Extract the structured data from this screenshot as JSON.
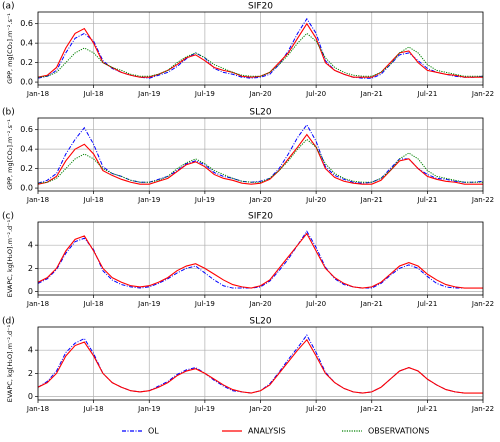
{
  "chart_data": [
    {
      "type": "line",
      "panel_label": "(a)",
      "title": "SIF20",
      "ylabel": "GPP, mg[CO₂].m⁻².s⁻¹",
      "x": [
        0,
        1,
        2,
        3,
        4,
        5,
        6,
        7,
        8,
        9,
        10,
        11,
        12,
        13,
        14,
        15,
        16,
        17,
        18,
        19,
        20,
        21,
        22,
        23,
        24,
        25,
        26,
        27,
        28,
        29,
        30,
        31,
        32,
        33,
        34,
        35,
        36,
        37,
        38,
        39,
        40,
        41,
        42,
        43,
        44,
        45,
        46,
        47,
        48
      ],
      "xlim": [
        0,
        48
      ],
      "xticks": [
        {
          "value": 0,
          "label": "Jan-18"
        },
        {
          "value": 6,
          "label": "Jul-18"
        },
        {
          "value": 12,
          "label": "Jan-19"
        },
        {
          "value": 18,
          "label": "Jul-19"
        },
        {
          "value": 24,
          "label": "Jan-20"
        },
        {
          "value": 30,
          "label": "Jul-20"
        },
        {
          "value": 36,
          "label": "Jan-21"
        },
        {
          "value": 42,
          "label": "Jul-21"
        },
        {
          "value": 48,
          "label": "Jan-22"
        }
      ],
      "ylim": [
        -0.03,
        0.72
      ],
      "yticks": [
        {
          "value": 0,
          "label": "0.0"
        },
        {
          "value": 0.2,
          "label": "0.2"
        },
        {
          "value": 0.4,
          "label": "0.4"
        },
        {
          "value": 0.6,
          "label": "0.6"
        }
      ],
      "grid": true,
      "series": [
        {
          "name": "OL",
          "color": "#0000ff",
          "dash": "dashdot",
          "values": [
            0.04,
            0.06,
            0.12,
            0.3,
            0.45,
            0.5,
            0.42,
            0.22,
            0.14,
            0.1,
            0.07,
            0.05,
            0.04,
            0.07,
            0.1,
            0.16,
            0.24,
            0.3,
            0.25,
            0.14,
            0.1,
            0.08,
            0.05,
            0.04,
            0.05,
            0.08,
            0.18,
            0.32,
            0.5,
            0.65,
            0.5,
            0.22,
            0.12,
            0.08,
            0.05,
            0.04,
            0.04,
            0.08,
            0.18,
            0.28,
            0.3,
            0.22,
            0.14,
            0.1,
            0.08,
            0.06,
            0.05,
            0.05,
            0.06
          ]
        },
        {
          "name": "ANALYSIS",
          "color": "#ff0000",
          "dash": "solid",
          "values": [
            0.05,
            0.07,
            0.15,
            0.35,
            0.5,
            0.55,
            0.4,
            0.2,
            0.15,
            0.1,
            0.07,
            0.05,
            0.05,
            0.08,
            0.12,
            0.18,
            0.25,
            0.28,
            0.22,
            0.15,
            0.12,
            0.1,
            0.06,
            0.05,
            0.06,
            0.1,
            0.2,
            0.3,
            0.45,
            0.6,
            0.45,
            0.2,
            0.12,
            0.08,
            0.05,
            0.05,
            0.05,
            0.1,
            0.2,
            0.3,
            0.32,
            0.2,
            0.12,
            0.1,
            0.08,
            0.07,
            0.05,
            0.05,
            0.05
          ]
        },
        {
          "name": "OBSERVATIONS",
          "color": "#008000",
          "dash": "dotted",
          "values": [
            0.05,
            0.06,
            0.1,
            0.2,
            0.3,
            0.35,
            0.3,
            0.2,
            0.15,
            0.12,
            0.08,
            0.06,
            0.06,
            0.08,
            0.12,
            0.2,
            0.26,
            0.3,
            0.25,
            0.18,
            0.14,
            0.1,
            0.07,
            0.06,
            0.06,
            0.1,
            0.18,
            0.28,
            0.4,
            0.5,
            0.42,
            0.25,
            0.15,
            0.1,
            0.07,
            0.06,
            0.06,
            0.1,
            0.18,
            0.3,
            0.36,
            0.3,
            0.18,
            0.12,
            0.1,
            0.08,
            0.06,
            0.06,
            0.06
          ]
        }
      ]
    },
    {
      "type": "line",
      "panel_label": "(b)",
      "title": "SL20",
      "ylabel": "GPP, mg[CO₂].m⁻².s⁻¹",
      "x": [
        0,
        1,
        2,
        3,
        4,
        5,
        6,
        7,
        8,
        9,
        10,
        11,
        12,
        13,
        14,
        15,
        16,
        17,
        18,
        19,
        20,
        21,
        22,
        23,
        24,
        25,
        26,
        27,
        28,
        29,
        30,
        31,
        32,
        33,
        34,
        35,
        36,
        37,
        38,
        39,
        40,
        41,
        42,
        43,
        44,
        45,
        46,
        47,
        48
      ],
      "xlim": [
        0,
        48
      ],
      "xticks": [
        {
          "value": 0,
          "label": "Jan-18"
        },
        {
          "value": 6,
          "label": "Jul-18"
        },
        {
          "value": 12,
          "label": "Jan-19"
        },
        {
          "value": 18,
          "label": "Jul-19"
        },
        {
          "value": 24,
          "label": "Jan-20"
        },
        {
          "value": 30,
          "label": "Jul-20"
        },
        {
          "value": 36,
          "label": "Jan-21"
        },
        {
          "value": 42,
          "label": "Jul-21"
        },
        {
          "value": 48,
          "label": "Jan-22"
        }
      ],
      "ylim": [
        -0.03,
        0.72
      ],
      "yticks": [
        {
          "value": 0,
          "label": "0.0"
        },
        {
          "value": 0.2,
          "label": "0.2"
        },
        {
          "value": 0.4,
          "label": "0.4"
        },
        {
          "value": 0.6,
          "label": "0.6"
        }
      ],
      "grid": true,
      "series": [
        {
          "name": "OL",
          "color": "#0000ff",
          "dash": "dashdot",
          "values": [
            0.05,
            0.08,
            0.15,
            0.35,
            0.5,
            0.62,
            0.45,
            0.22,
            0.15,
            0.12,
            0.08,
            0.06,
            0.06,
            0.09,
            0.12,
            0.18,
            0.25,
            0.28,
            0.24,
            0.16,
            0.12,
            0.1,
            0.07,
            0.06,
            0.07,
            0.1,
            0.2,
            0.35,
            0.52,
            0.65,
            0.48,
            0.22,
            0.13,
            0.09,
            0.06,
            0.05,
            0.06,
            0.1,
            0.2,
            0.3,
            0.3,
            0.2,
            0.14,
            0.1,
            0.09,
            0.07,
            0.06,
            0.06,
            0.07
          ]
        },
        {
          "name": "ANALYSIS",
          "color": "#ff0000",
          "dash": "solid",
          "values": [
            0.04,
            0.06,
            0.12,
            0.28,
            0.4,
            0.45,
            0.35,
            0.18,
            0.13,
            0.09,
            0.06,
            0.04,
            0.04,
            0.07,
            0.1,
            0.17,
            0.24,
            0.27,
            0.22,
            0.14,
            0.1,
            0.08,
            0.05,
            0.04,
            0.05,
            0.09,
            0.18,
            0.3,
            0.42,
            0.55,
            0.42,
            0.2,
            0.11,
            0.07,
            0.05,
            0.04,
            0.04,
            0.08,
            0.18,
            0.28,
            0.3,
            0.2,
            0.12,
            0.09,
            0.07,
            0.06,
            0.04,
            0.04,
            0.04
          ]
        },
        {
          "name": "OBSERVATIONS",
          "color": "#008000",
          "dash": "dotted",
          "values": [
            0.05,
            0.06,
            0.1,
            0.2,
            0.3,
            0.35,
            0.3,
            0.2,
            0.15,
            0.12,
            0.08,
            0.06,
            0.06,
            0.08,
            0.12,
            0.2,
            0.26,
            0.3,
            0.25,
            0.18,
            0.14,
            0.1,
            0.07,
            0.06,
            0.06,
            0.1,
            0.18,
            0.28,
            0.4,
            0.5,
            0.42,
            0.25,
            0.15,
            0.1,
            0.07,
            0.06,
            0.06,
            0.1,
            0.18,
            0.3,
            0.36,
            0.3,
            0.18,
            0.12,
            0.1,
            0.08,
            0.06,
            0.06,
            0.06
          ]
        }
      ]
    },
    {
      "type": "line",
      "panel_label": "(c)",
      "title": "SIF20",
      "ylabel": "EVAPC, kg[H₂O].m⁻².d⁻¹",
      "x": [
        0,
        1,
        2,
        3,
        4,
        5,
        6,
        7,
        8,
        9,
        10,
        11,
        12,
        13,
        14,
        15,
        16,
        17,
        18,
        19,
        20,
        21,
        22,
        23,
        24,
        25,
        26,
        27,
        28,
        29,
        30,
        31,
        32,
        33,
        34,
        35,
        36,
        37,
        38,
        39,
        40,
        41,
        42,
        43,
        44,
        45,
        46,
        47,
        48
      ],
      "xlim": [
        0,
        48
      ],
      "xticks": [
        {
          "value": 0,
          "label": "Jan-18"
        },
        {
          "value": 6,
          "label": "Jul-18"
        },
        {
          "value": 12,
          "label": "Jan-19"
        },
        {
          "value": 18,
          "label": "Jul-19"
        },
        {
          "value": 24,
          "label": "Jan-20"
        },
        {
          "value": 30,
          "label": "Jul-20"
        },
        {
          "value": 36,
          "label": "Jan-21"
        },
        {
          "value": 42,
          "label": "Jul-21"
        },
        {
          "value": 48,
          "label": "Jan-22"
        }
      ],
      "ylim": [
        -0.3,
        6
      ],
      "yticks": [
        0,
        2,
        4
      ],
      "grid": true,
      "series": [
        {
          "name": "OL",
          "color": "#0000ff",
          "dash": "dashdot",
          "values": [
            0.7,
            1.1,
            1.9,
            3.3,
            4.3,
            4.6,
            3.6,
            1.8,
            1,
            0.6,
            0.4,
            0.3,
            0.4,
            0.7,
            1.1,
            1.6,
            2,
            2.2,
            1.6,
            1,
            0.5,
            0.3,
            0.3,
            0.3,
            0.4,
            0.9,
            1.8,
            2.8,
            4,
            5.2,
            3.8,
            2.1,
            1.1,
            0.6,
            0.4,
            0.3,
            0.3,
            0.7,
            1.4,
            2,
            2.3,
            2,
            1.3,
            0.7,
            0.4,
            0.3,
            0.3,
            0.3,
            0.3
          ]
        },
        {
          "name": "ANALYSIS",
          "color": "#ff0000",
          "dash": "solid",
          "values": [
            0.8,
            1.2,
            2,
            3.5,
            4.5,
            4.8,
            3.5,
            2,
            1.2,
            0.8,
            0.5,
            0.4,
            0.5,
            0.8,
            1.2,
            1.8,
            2.2,
            2.4,
            2,
            1.5,
            1,
            0.6,
            0.4,
            0.3,
            0.5,
            1,
            2,
            3,
            4,
            5,
            3.5,
            2,
            1.2,
            0.7,
            0.4,
            0.3,
            0.4,
            0.8,
            1.5,
            2.2,
            2.5,
            2.2,
            1.5,
            1,
            0.6,
            0.4,
            0.3,
            0.3,
            0.3
          ]
        }
      ]
    },
    {
      "type": "line",
      "panel_label": "(d)",
      "title": "SL20",
      "ylabel": "EVAPC, kg[H₂O].m⁻².d⁻¹",
      "x": [
        0,
        1,
        2,
        3,
        4,
        5,
        6,
        7,
        8,
        9,
        10,
        11,
        12,
        13,
        14,
        15,
        16,
        17,
        18,
        19,
        20,
        21,
        22,
        23,
        24,
        25,
        26,
        27,
        28,
        29,
        30,
        31,
        32,
        33,
        34,
        35,
        36,
        37,
        38,
        39,
        40,
        41,
        42,
        43,
        44,
        45,
        46,
        47,
        48
      ],
      "xlim": [
        0,
        48
      ],
      "xticks": [
        {
          "value": 0,
          "label": "Jan-18"
        },
        {
          "value": 6,
          "label": "Jul-18"
        },
        {
          "value": 12,
          "label": "Jan-19"
        },
        {
          "value": 18,
          "label": "Jul-19"
        },
        {
          "value": 24,
          "label": "Jan-20"
        },
        {
          "value": 30,
          "label": "Jul-20"
        },
        {
          "value": 36,
          "label": "Jan-21"
        },
        {
          "value": 42,
          "label": "Jul-21"
        },
        {
          "value": 48,
          "label": "Jan-22"
        }
      ],
      "ylim": [
        -0.3,
        6
      ],
      "yticks": [
        0,
        2,
        4
      ],
      "grid": true,
      "series": [
        {
          "name": "OL",
          "color": "#0000ff",
          "dash": "dashdot",
          "values": [
            0.8,
            1.3,
            2.2,
            3.8,
            4.6,
            5,
            3.7,
            2,
            1.2,
            0.8,
            0.5,
            0.4,
            0.5,
            0.9,
            1.3,
            1.9,
            2.3,
            2.5,
            2,
            1.4,
            0.9,
            0.5,
            0.4,
            0.3,
            0.5,
            1.1,
            2.1,
            3.2,
            4.2,
            5.3,
            3.8,
            2.1,
            1.2,
            0.7,
            0.4,
            0.3,
            0.4,
            0.8,
            1.5,
            2.2,
            2.5,
            2.2,
            1.5,
            1,
            0.6,
            0.4,
            0.3,
            0.3,
            0.3
          ]
        },
        {
          "name": "ANALYSIS",
          "color": "#ff0000",
          "dash": "solid",
          "values": [
            0.8,
            1.2,
            2,
            3.5,
            4.4,
            4.7,
            3.5,
            2,
            1.2,
            0.8,
            0.5,
            0.4,
            0.5,
            0.8,
            1.2,
            1.8,
            2.2,
            2.4,
            2,
            1.5,
            1,
            0.6,
            0.4,
            0.3,
            0.5,
            1,
            2,
            3,
            4,
            4.9,
            3.5,
            2,
            1.2,
            0.7,
            0.4,
            0.3,
            0.4,
            0.8,
            1.5,
            2.2,
            2.5,
            2.2,
            1.5,
            1,
            0.6,
            0.4,
            0.3,
            0.3,
            0.3
          ]
        }
      ]
    }
  ]
}
